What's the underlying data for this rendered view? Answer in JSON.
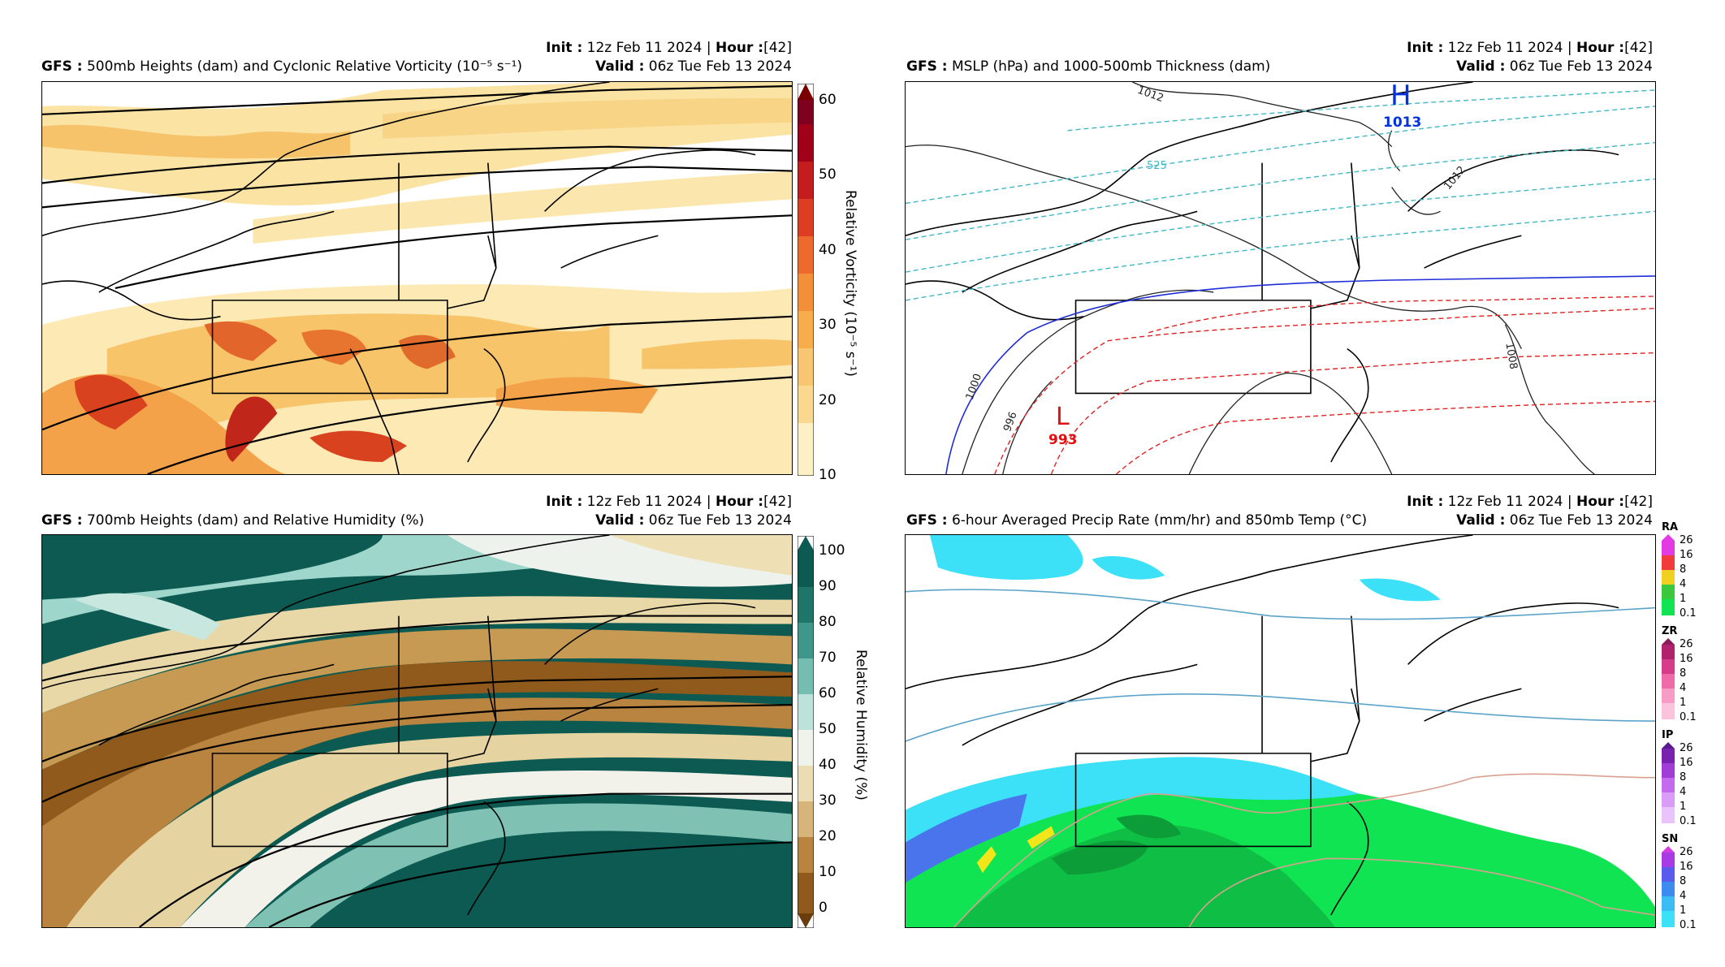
{
  "common": {
    "init_label": "Init",
    "init_value": "12z Feb 11 2024",
    "hour_label": "Hour",
    "hour_value": "[42]",
    "valid_label": "Valid",
    "valid_value": "06z Tue Feb 13 2024",
    "model": "GFS"
  },
  "panels": [
    {
      "title": "500mb Heights (dam) and Cyclonic Relative Vorticity (10⁻⁵ s⁻¹)",
      "colorbar_label": "Relative Vorticity (10⁻⁵ s⁻¹)",
      "ticks": [
        "60",
        "50",
        "40",
        "30",
        "20",
        "10"
      ]
    },
    {
      "title": "MSLP (hPa) and 1000-500mb Thickness (dam)",
      "high_symbol": "H",
      "high_value": "1013",
      "low_symbol": "L",
      "low_value": "993",
      "contour_labels": [
        "1012",
        "1012",
        "525",
        "1008",
        "1000",
        "996"
      ]
    },
    {
      "title": "700mb Heights (dam) and Relative Humidity (%)",
      "colorbar_label": "Relative Humidity (%)",
      "ticks": [
        "100",
        "90",
        "80",
        "70",
        "60",
        "50",
        "40",
        "30",
        "20",
        "10",
        "0"
      ]
    },
    {
      "title": "6-hour Averaged Precip Rate (mm/hr) and 850mb Temp (°C)",
      "legends": [
        {
          "type": "RA",
          "ticks": [
            "26",
            "16",
            "8",
            "4",
            "1",
            "0.1"
          ]
        },
        {
          "type": "ZR",
          "ticks": [
            "26",
            "16",
            "8",
            "4",
            "1",
            "0.1"
          ]
        },
        {
          "type": "IP",
          "ticks": [
            "26",
            "16",
            "8",
            "4",
            "1",
            "0.1"
          ]
        },
        {
          "type": "SN",
          "ticks": [
            "26",
            "16",
            "8",
            "4",
            "1",
            "0.1"
          ]
        }
      ]
    }
  ]
}
